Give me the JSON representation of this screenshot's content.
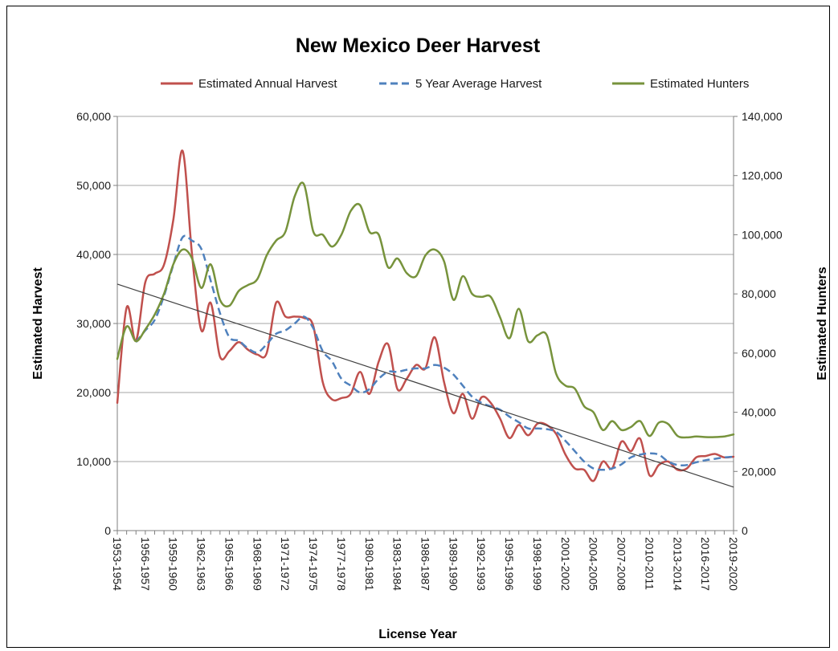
{
  "chart_data": {
    "type": "line",
    "title": "New Mexico Deer Harvest",
    "xlabel": "License Year",
    "ylabel": "Estimated Harvest",
    "y2label": "Estimated Hunters",
    "ylim": [
      0,
      60000
    ],
    "y2lim": [
      0,
      140000
    ],
    "yticks": [
      "0",
      "10,000",
      "20,000",
      "30,000",
      "40,000",
      "50,000",
      "60,000"
    ],
    "y2ticks": [
      "0",
      "20,000",
      "40,000",
      "60,000",
      "80,000",
      "100,000",
      "120,000",
      "140,000"
    ],
    "grid": true,
    "legend_position": "top",
    "x_tick_labels": [
      "1953-1954",
      "1956-1957",
      "1959-1960",
      "1962-1963",
      "1965-1966",
      "1968-1969",
      "1971-1972",
      "1974-1975",
      "1977-1978",
      "1980-1981",
      "1983-1984",
      "1986-1987",
      "1989-1990",
      "1992-1993",
      "1995-1996",
      "1998-1999",
      "2001-2002",
      "2004-2005",
      "2007-2008",
      "2010-2011",
      "2013-2014",
      "2016-2017",
      "2019-2020"
    ],
    "x": [
      1953,
      1954,
      1955,
      1956,
      1957,
      1958,
      1959,
      1960,
      1961,
      1962,
      1963,
      1964,
      1965,
      1966,
      1967,
      1968,
      1969,
      1970,
      1971,
      1972,
      1973,
      1974,
      1975,
      1976,
      1977,
      1978,
      1979,
      1980,
      1981,
      1982,
      1983,
      1984,
      1985,
      1986,
      1987,
      1988,
      1989,
      1990,
      1991,
      1992,
      1993,
      1994,
      1995,
      1996,
      1997,
      1998,
      1999,
      2000,
      2001,
      2002,
      2003,
      2004,
      2005,
      2006,
      2007,
      2008,
      2009,
      2010,
      2011,
      2012,
      2013,
      2014,
      2015,
      2016,
      2017,
      2018,
      2019
    ],
    "series": [
      {
        "name": "Estimated Annual Harvest",
        "axis": "left",
        "color": "#c0504d",
        "dash": false,
        "values": [
          18500,
          32300,
          27500,
          36000,
          37200,
          38500,
          45000,
          55000,
          40000,
          29000,
          33000,
          25200,
          26000,
          27300,
          26200,
          25500,
          25700,
          33000,
          31000,
          31000,
          30800,
          29600,
          21500,
          19000,
          19200,
          19800,
          23000,
          19800,
          24500,
          27000,
          20500,
          22000,
          24000,
          23500,
          28000,
          21500,
          17000,
          19800,
          16200,
          19300,
          18500,
          16200,
          13400,
          15300,
          13800,
          15500,
          15300,
          14000,
          11000,
          9000,
          8800,
          7200,
          10000,
          9000,
          12900,
          11500,
          13300,
          8000,
          9500,
          10000,
          8800,
          9000,
          10600,
          10800,
          11100,
          10600,
          10700
        ]
      },
      {
        "name": "5 Year Average Harvest",
        "axis": "left",
        "color": "#4f81bd",
        "dash": true,
        "values": [
          null,
          null,
          27300,
          29000,
          30500,
          34000,
          38500,
          42500,
          42000,
          40800,
          36200,
          31500,
          28000,
          27500,
          26400,
          25800,
          27000,
          28500,
          29000,
          30000,
          31000,
          29300,
          26000,
          24500,
          22000,
          21000,
          20000,
          20500,
          22000,
          23000,
          23000,
          23300,
          23500,
          23500,
          24000,
          23600,
          22600,
          21000,
          19400,
          18500,
          18000,
          17500,
          16500,
          15700,
          14800,
          14800,
          14700,
          14300,
          13000,
          11500,
          10000,
          9000,
          8800,
          9000,
          9600,
          10600,
          11000,
          11200,
          11000,
          10000,
          9500,
          9500,
          9900,
          10200,
          10400,
          10600,
          10700
        ]
      },
      {
        "name": "Estimated Hunters",
        "axis": "right",
        "color": "#77933c",
        "dash": false,
        "values": [
          58000,
          69000,
          64000,
          68000,
          73000,
          80000,
          90000,
          95000,
          92000,
          82000,
          90000,
          78000,
          76000,
          81000,
          83000,
          85000,
          93000,
          98000,
          101000,
          113000,
          117000,
          101000,
          100000,
          96000,
          100000,
          108000,
          110000,
          101000,
          100000,
          89000,
          92000,
          87000,
          86000,
          93000,
          95000,
          91000,
          78000,
          86000,
          80000,
          79000,
          79000,
          72000,
          65000,
          75000,
          64000,
          66000,
          66000,
          53000,
          49000,
          48000,
          42000,
          40000,
          34000,
          37000,
          34000,
          35000,
          37000,
          32000,
          36500,
          36000,
          32000,
          31500,
          31800,
          31600,
          31600,
          31800,
          32500
        ]
      }
    ],
    "trendline": {
      "axis": "left",
      "color": "#404040",
      "start": [
        1953,
        35700
      ],
      "end": [
        2019,
        6300
      ]
    }
  },
  "colors": {
    "grid": "#a6a6a6",
    "axis": "#7f7f7f"
  }
}
